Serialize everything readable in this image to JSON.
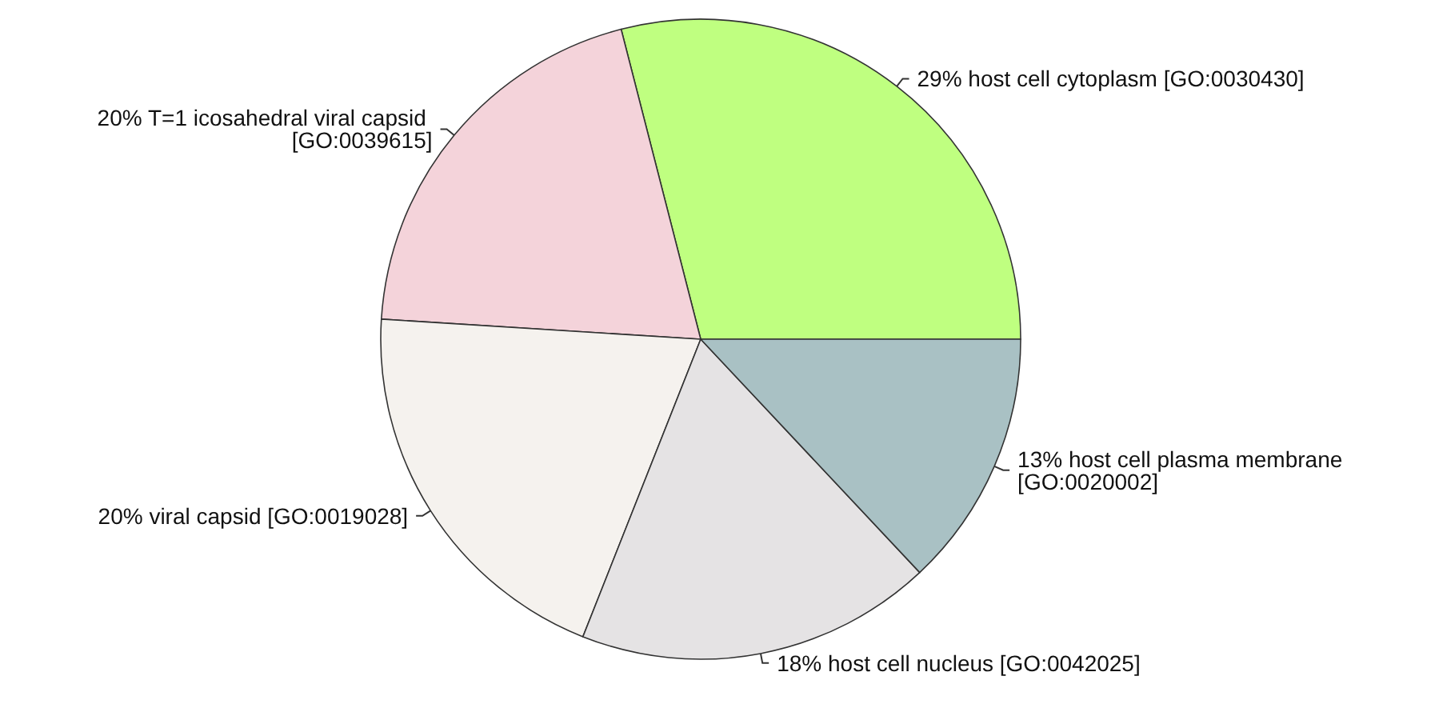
{
  "chart_data": {
    "type": "pie",
    "categories": [
      "host cell cytoplasm [GO:0030430]",
      "T=1 icosahedral viral capsid [GO:0039615]",
      "viral capsid [GO:0019028]",
      "host cell nucleus [GO:0042025]",
      "host cell plasma membrane [GO:0020002]"
    ],
    "values": [
      29,
      20,
      20,
      18,
      13
    ],
    "value_labels": [
      "29%",
      "20%",
      "20%",
      "18%",
      "13%"
    ],
    "colors": [
      "#bfff80",
      "#f4d3da",
      "#f5f2ee",
      "#e5e3e4",
      "#a9c1c4"
    ],
    "legend": false
  }
}
